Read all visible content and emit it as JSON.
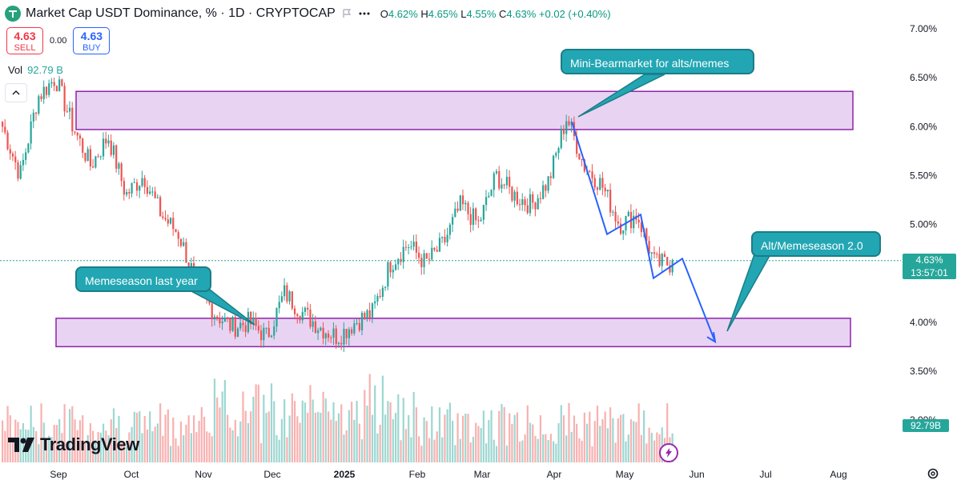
{
  "header": {
    "title": "Market Cap USDT Dominance, % · 1D · CRYPTOCAP",
    "ohlc": {
      "o_label": "O",
      "o": "4.62%",
      "h_label": "H",
      "h": "4.65%",
      "l_label": "L",
      "l": "4.55%",
      "c_label": "C",
      "c": "4.63%",
      "change": "+0.02 (+0.40%)"
    }
  },
  "trade": {
    "sell_price": "4.63",
    "sell_label": "SELL",
    "spread": "0.00",
    "buy_price": "4.63",
    "buy_label": "BUY"
  },
  "volume": {
    "label": "Vol",
    "value": "92.79 B"
  },
  "annotations": {
    "callout_top": "Mini-Bearmarket for alts/memes",
    "callout_left": "Memeseason last year",
    "callout_right": "Alt/Memeseason 2.0"
  },
  "price_label": {
    "value": "4.63%",
    "countdown": "13:57:01"
  },
  "volume_label": "92.79B",
  "branding": "TradingView",
  "icons": [
    "usdt-logo-icon",
    "flag-icon",
    "more-icon",
    "chevron-up-icon",
    "replay-icon",
    "settings-icon",
    "tradingview-logo-icon"
  ],
  "colors": {
    "up": "#26a69a",
    "down": "#ef5350",
    "zone_fill": "#e3c8ef",
    "zone_border": "#8e24aa",
    "projection": "#2962ff",
    "callout": "#22a6b3"
  },
  "chart_data": {
    "type": "candlestick",
    "y_axis": {
      "unit": "%",
      "ticks": [
        "7.00%",
        "6.50%",
        "6.00%",
        "5.50%",
        "5.00%",
        "4.50%",
        "4.00%",
        "3.50%",
        "3.00%"
      ],
      "range": [
        2.75,
        7.25
      ]
    },
    "x_axis": {
      "ticks": [
        "Sep",
        "Oct",
        "Nov",
        "Dec",
        "2025",
        "Feb",
        "Mar",
        "Apr",
        "May",
        "Jun",
        "Jul",
        "Aug"
      ]
    },
    "last_price": 4.63,
    "zones": [
      {
        "from": 5.97,
        "to": 6.36
      },
      {
        "from": 3.75,
        "to": 4.04
      }
    ],
    "price_path": [
      6.0,
      5.5,
      6.3,
      6.5,
      6.0,
      5.6,
      5.9,
      5.3,
      5.5,
      5.1,
      4.9,
      4.4,
      4.1,
      3.95,
      4.0,
      3.85,
      4.3,
      4.1,
      3.95,
      3.85,
      4.0,
      4.1,
      4.6,
      4.8,
      4.6,
      4.8,
      5.2,
      5.0,
      5.5,
      5.3,
      5.2,
      5.45,
      6.1,
      5.6,
      5.4,
      5.0,
      5.1,
      4.6,
      4.6
    ],
    "projection": [
      {
        "x": "Apr",
        "y": 6.05
      },
      {
        "x": "late Apr",
        "y": 4.9
      },
      {
        "x": "May",
        "y": 5.1
      },
      {
        "x": "mid May",
        "y": 4.45
      },
      {
        "x": "late May",
        "y": 4.65
      },
      {
        "x": "mid Jun",
        "y": 3.8
      }
    ]
  }
}
